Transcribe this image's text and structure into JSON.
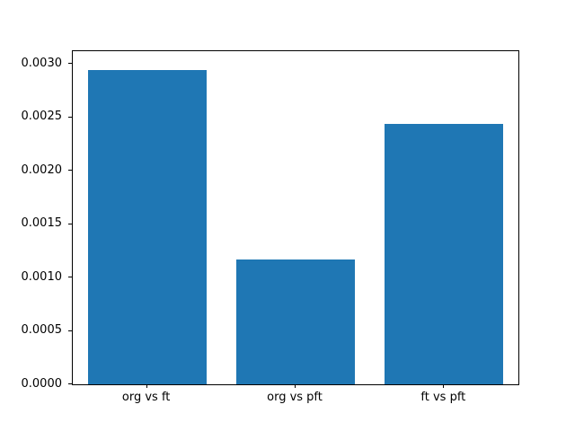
{
  "chart_data": {
    "type": "bar",
    "categories": [
      "org vs ft",
      "org vs pft",
      "ft vs pft"
    ],
    "values": [
      0.00294,
      0.00117,
      0.00244
    ],
    "title": "",
    "xlabel": "",
    "ylabel": "",
    "ylim": [
      0,
      0.00312
    ],
    "yticks": [
      0.0,
      0.0005,
      0.001,
      0.0015,
      0.002,
      0.0025,
      0.003
    ],
    "ytick_labels": [
      "0.0000",
      "0.0005",
      "0.0010",
      "0.0015",
      "0.0020",
      "0.0025",
      "0.0030"
    ],
    "bar_color": "#1f77b4",
    "grid": false,
    "legend": null
  }
}
